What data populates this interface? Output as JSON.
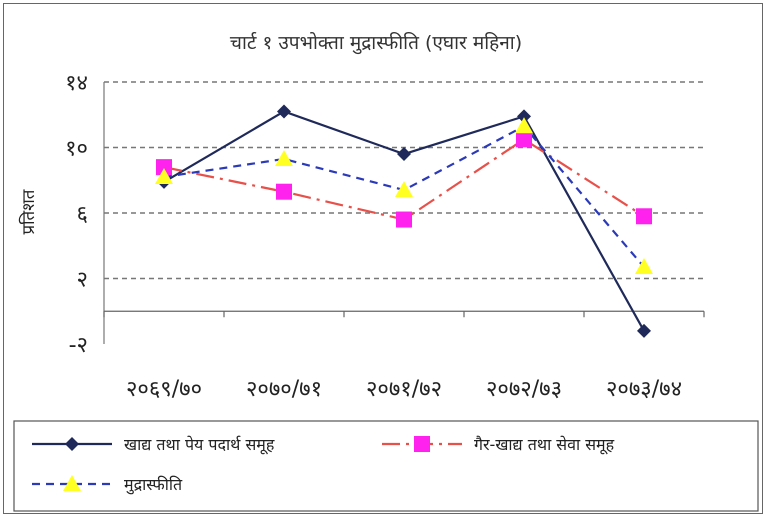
{
  "chart_data": {
    "type": "line",
    "title": "चार्ट १ उपभोक्ता मुद्रास्फीति (एघार महिना)",
    "ylabel": "प्रतिशत",
    "xlabel": "",
    "categories": [
      "२०६९/७०",
      "२०७०/७१",
      "२०७१/७२",
      "२०७२/७३",
      "२०७३/७४"
    ],
    "ylim": [
      -2,
      14
    ],
    "yticks": [
      -2,
      2,
      6,
      10,
      14
    ],
    "ytick_labels": [
      "-२",
      "२",
      "६",
      "१०",
      "१४"
    ],
    "grid": true,
    "legend_position": "bottom",
    "series": [
      {
        "name": "खाद्य तथा पेय पदार्थ समूह",
        "values": [
          7.9,
          12.2,
          9.6,
          11.9,
          -1.2
        ],
        "color": "#1f2a5a",
        "marker": "diamond",
        "dash": ""
      },
      {
        "name": "गैर-खाद्य तथा सेवा समूह",
        "values": [
          8.8,
          7.3,
          5.6,
          10.5,
          5.8
        ],
        "color": "#e8504a",
        "marker": "square",
        "dash": "18 6 3 6"
      },
      {
        "name": "मुद्रास्फीति",
        "values": [
          8.2,
          9.3,
          7.4,
          11.3,
          2.7
        ],
        "color": "#2b3ab8",
        "marker": "triangle",
        "dash": "8 6"
      }
    ]
  }
}
